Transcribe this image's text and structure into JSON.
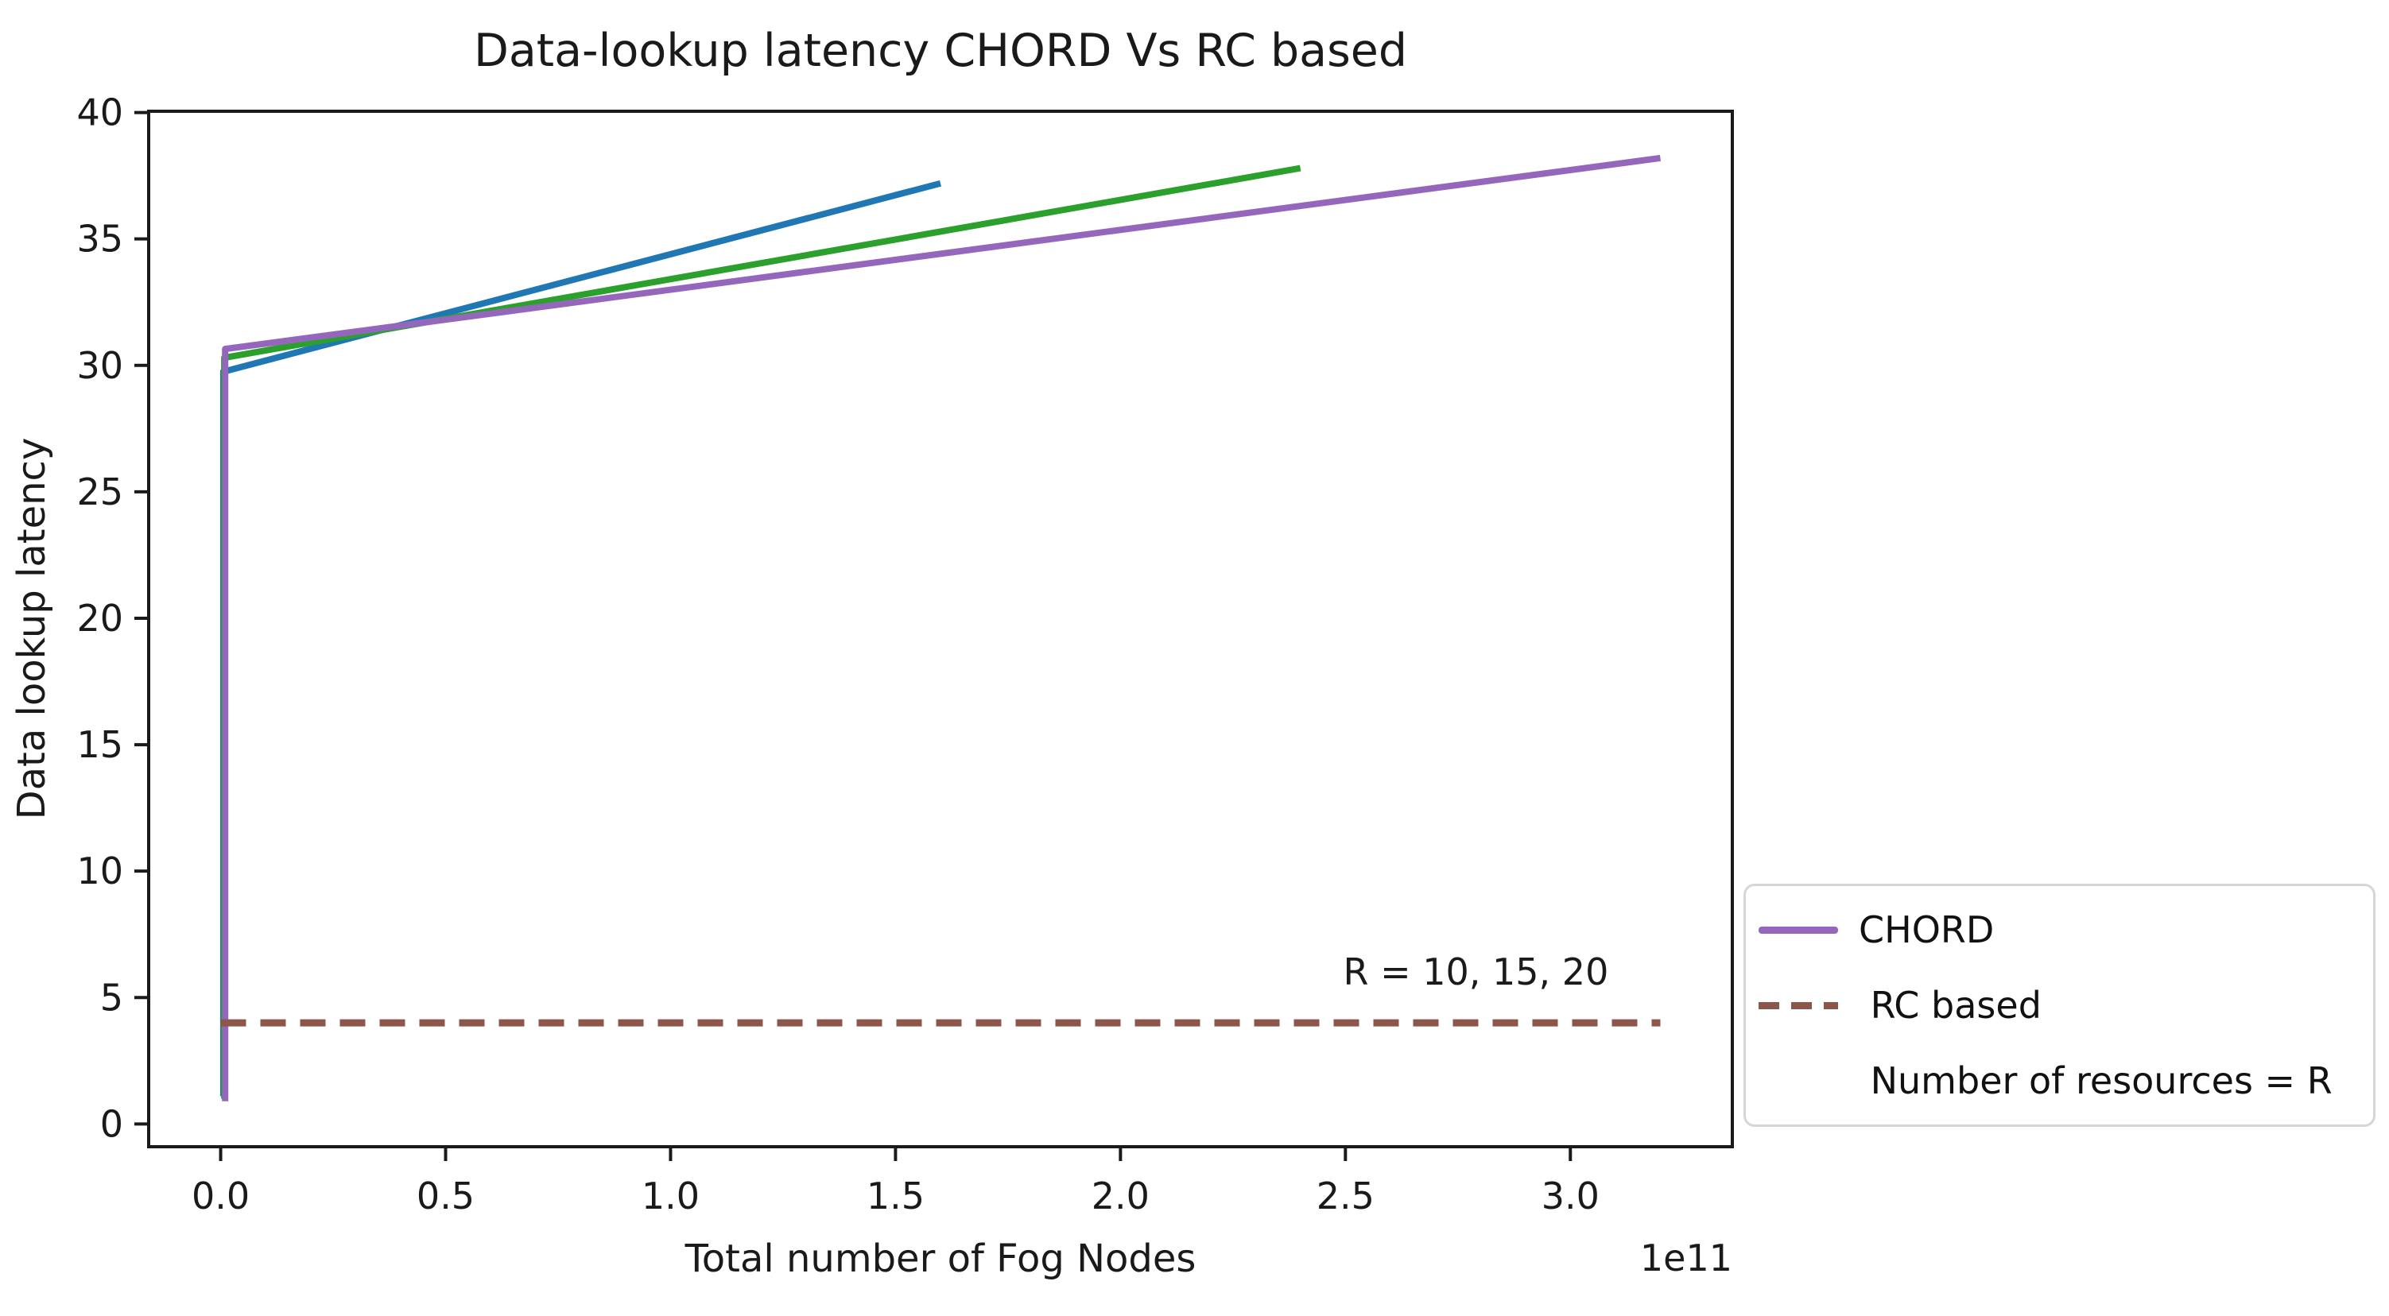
{
  "chart_data": {
    "type": "line",
    "title": "Data-lookup latency CHORD Vs RC based",
    "xlabel": "Total number of Fog Nodes",
    "ylabel": "Data lookup latency",
    "x_offset_text": "1e11",
    "x_units_note": "x values below are in multiples of 1e11 fog nodes",
    "xlim": [
      -0.16,
      3.36
    ],
    "ylim": [
      -0.9,
      40.05
    ],
    "grid": false,
    "xticks": {
      "values": [
        0,
        0.5,
        1.0,
        1.5,
        2.0,
        2.5,
        3.0
      ],
      "labels": [
        "0.0",
        "0.5",
        "1.0",
        "1.5",
        "2.0",
        "2.5",
        "3.0"
      ]
    },
    "yticks": {
      "values": [
        0,
        5,
        10,
        15,
        20,
        25,
        30,
        35,
        40
      ],
      "labels": [
        "0",
        "5",
        "10",
        "15",
        "20",
        "25",
        "30",
        "35",
        "40"
      ]
    },
    "series": [
      {
        "key": "chord-blue",
        "name": "CHORD curve (blue, not in legend)",
        "color": "#1f77b4",
        "style": "solid",
        "points": [
          [
            0.006,
            1.1
          ],
          [
            0.006,
            29.75
          ],
          [
            1.6,
            37.2
          ]
        ]
      },
      {
        "key": "chord-green",
        "name": "CHORD curve (green, not in legend)",
        "color": "#2ca02c",
        "style": "solid",
        "points": [
          [
            0.008,
            1.0
          ],
          [
            0.008,
            30.3
          ],
          [
            2.4,
            37.8
          ]
        ]
      },
      {
        "key": "chord-purple",
        "name": "CHORD",
        "color": "#9467bd",
        "style": "solid",
        "points": [
          [
            0.01,
            0.9
          ],
          [
            0.01,
            30.65
          ],
          [
            3.2,
            38.2
          ]
        ]
      },
      {
        "key": "rc-based",
        "name": "RC based",
        "color": "#8c564b",
        "style": "dashed",
        "points": [
          [
            0.0,
            4.0
          ],
          [
            3.2,
            4.0
          ]
        ]
      }
    ],
    "annotation": {
      "text": "R = 10, 15, 20",
      "x": 2.79,
      "y": 6.0
    },
    "legend": {
      "position": "outside-lower-right",
      "entries": [
        {
          "label": "CHORD",
          "handle": "solid",
          "color": "#9467bd"
        },
        {
          "label": " RC based",
          "handle": "dashed",
          "color": "#8c564b"
        },
        {
          "label": " Number of resources = R",
          "handle": "none",
          "color": null
        }
      ]
    }
  }
}
